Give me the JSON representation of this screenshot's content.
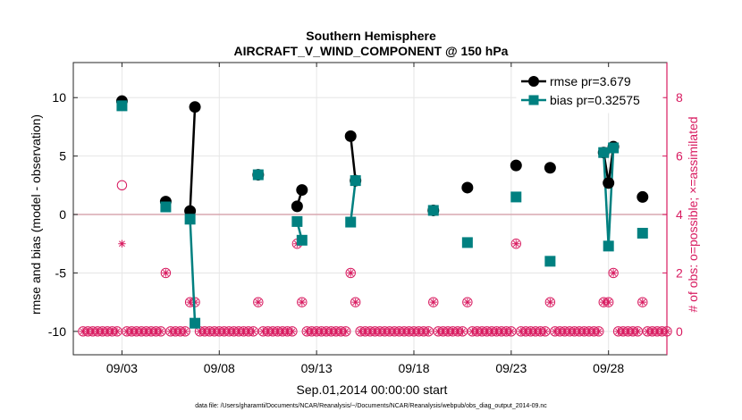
{
  "chart_data": {
    "type": "line",
    "title": "Southern Hemisphere",
    "subtitle": "AIRCRAFT_V_WIND_COMPONENT @ 150 hPa",
    "xlabel": "Sep.01,2014 00:00:00 start",
    "ylabel": "rmse and bias (model - observation)",
    "y2label": "# of obs: o=possible; ×=assimilated",
    "footer": "data file: /Users/gharamti/Documents/NCAR/Reanalysis/~/Documents/NCAR/Reanalysis/webpub/obs_diag_output_2014-09.nc",
    "xlim": [
      0.5,
      31.0
    ],
    "ylim": [
      -12,
      13
    ],
    "y2lim": [
      -0.8,
      9.2
    ],
    "yticks": [
      -10,
      -5,
      0,
      5,
      10
    ],
    "y2ticks": [
      0,
      2,
      4,
      6,
      8
    ],
    "xticks": [
      {
        "x": 3,
        "label": "09/03"
      },
      {
        "x": 8,
        "label": "09/08"
      },
      {
        "x": 13,
        "label": "09/13"
      },
      {
        "x": 18,
        "label": "09/18"
      },
      {
        "x": 23,
        "label": "09/23"
      },
      {
        "x": 28,
        "label": "09/28"
      }
    ],
    "grid": true,
    "legend_position": "top-right",
    "colors": {
      "rmse": "#000000",
      "bias": "#008080",
      "obs": "#d81b60",
      "zero_line": "#d8a8b0"
    },
    "series": [
      {
        "name": "rmse pr=3.679",
        "marker": "circle",
        "points": [
          {
            "x": 3.0,
            "y": 9.7
          },
          {
            "x": 5.25,
            "y": 1.1
          },
          {
            "x": 6.5,
            "y": 0.3
          },
          {
            "x": 6.75,
            "y": 9.2
          },
          {
            "x": 10.0,
            "y": 3.4
          },
          {
            "x": 12.0,
            "y": 0.7
          },
          {
            "x": 12.25,
            "y": 2.1
          },
          {
            "x": 14.75,
            "y": 6.7
          },
          {
            "x": 15.0,
            "y": 2.9
          },
          {
            "x": 19.0,
            "y": 0.35
          },
          {
            "x": 20.75,
            "y": 2.3
          },
          {
            "x": 23.25,
            "y": 4.2
          },
          {
            "x": 25.0,
            "y": 4.0
          },
          {
            "x": 27.75,
            "y": 5.3
          },
          {
            "x": 28.0,
            "y": 2.7
          },
          {
            "x": 28.25,
            "y": 5.8
          },
          {
            "x": 29.75,
            "y": 1.5
          }
        ],
        "segments": [
          [
            6.5,
            6.75
          ],
          [
            12.0,
            12.25
          ],
          [
            14.75,
            15.0
          ],
          [
            27.75,
            28.0
          ],
          [
            28.0,
            28.25
          ]
        ]
      },
      {
        "name": "bias pr=0.32575",
        "marker": "square",
        "points": [
          {
            "x": 3.0,
            "y": 9.3
          },
          {
            "x": 5.25,
            "y": 0.65
          },
          {
            "x": 6.5,
            "y": -0.4
          },
          {
            "x": 6.75,
            "y": -9.3
          },
          {
            "x": 10.0,
            "y": 3.4
          },
          {
            "x": 12.0,
            "y": -0.6
          },
          {
            "x": 12.25,
            "y": -2.2
          },
          {
            "x": 14.75,
            "y": -0.65
          },
          {
            "x": 15.0,
            "y": 2.9
          },
          {
            "x": 19.0,
            "y": 0.35
          },
          {
            "x": 20.75,
            "y": -2.4
          },
          {
            "x": 23.25,
            "y": 1.5
          },
          {
            "x": 25.0,
            "y": -4.0
          },
          {
            "x": 27.75,
            "y": 5.3
          },
          {
            "x": 28.0,
            "y": -2.7
          },
          {
            "x": 28.25,
            "y": 5.7
          },
          {
            "x": 29.75,
            "y": -1.6
          }
        ],
        "segments": [
          [
            6.5,
            6.75
          ],
          [
            12.0,
            12.25
          ],
          [
            14.75,
            15.0
          ],
          [
            27.75,
            28.0
          ],
          [
            28.0,
            28.25
          ]
        ]
      }
    ],
    "obs_counts": {
      "possible": [
        {
          "x": 3.0,
          "y": 5
        },
        {
          "x": 5.25,
          "y": 2
        },
        {
          "x": 6.5,
          "y": 1
        },
        {
          "x": 6.75,
          "y": 1
        },
        {
          "x": 10.0,
          "y": 1
        },
        {
          "x": 12.0,
          "y": 3
        },
        {
          "x": 12.25,
          "y": 1
        },
        {
          "x": 14.75,
          "y": 2
        },
        {
          "x": 15.0,
          "y": 1
        },
        {
          "x": 19.0,
          "y": 1
        },
        {
          "x": 20.75,
          "y": 1
        },
        {
          "x": 23.25,
          "y": 3
        },
        {
          "x": 25.0,
          "y": 1
        },
        {
          "x": 27.75,
          "y": 1
        },
        {
          "x": 28.0,
          "y": 1
        },
        {
          "x": 28.25,
          "y": 2
        },
        {
          "x": 29.75,
          "y": 1
        }
      ],
      "assimilated": [
        {
          "x": 3.0,
          "y": 3
        },
        {
          "x": 5.25,
          "y": 2
        },
        {
          "x": 6.5,
          "y": 1
        },
        {
          "x": 6.75,
          "y": 1
        },
        {
          "x": 10.0,
          "y": 1
        },
        {
          "x": 12.0,
          "y": 3
        },
        {
          "x": 12.25,
          "y": 1
        },
        {
          "x": 14.75,
          "y": 2
        },
        {
          "x": 15.0,
          "y": 1
        },
        {
          "x": 19.0,
          "y": 1
        },
        {
          "x": 20.75,
          "y": 1
        },
        {
          "x": 23.25,
          "y": 3
        },
        {
          "x": 25.0,
          "y": 1
        },
        {
          "x": 27.75,
          "y": 1
        },
        {
          "x": 28.0,
          "y": 1
        },
        {
          "x": 28.25,
          "y": 2
        },
        {
          "x": 29.75,
          "y": 1
        }
      ],
      "zero_count_step": 0.25
    }
  }
}
